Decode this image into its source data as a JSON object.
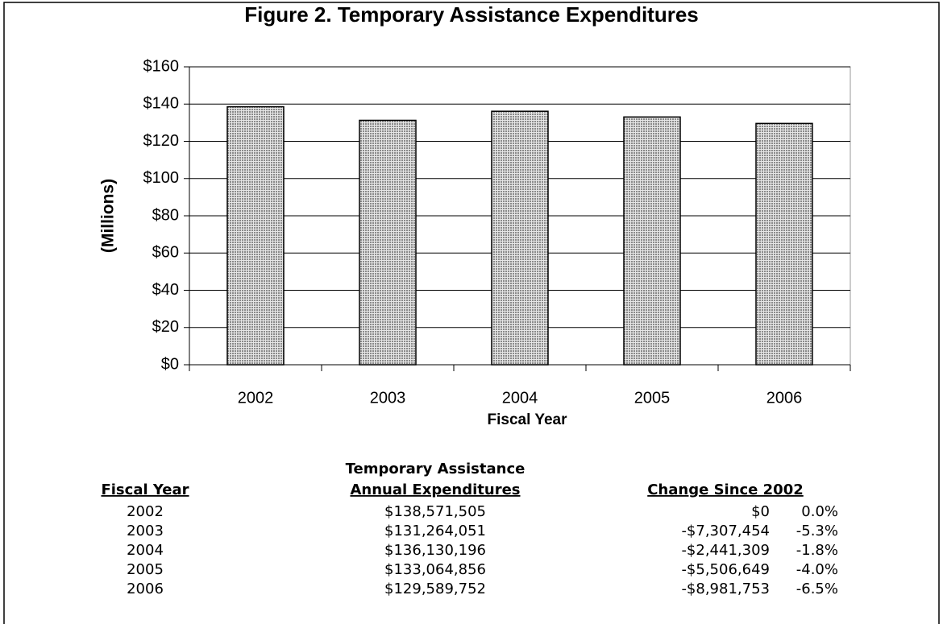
{
  "chart_data": {
    "type": "bar",
    "title": "Figure 2.  Temporary Assistance Expenditures",
    "ylabel": "(Millions)",
    "xlabel": "Fiscal Year",
    "categories": [
      "2002",
      "2003",
      "2004",
      "2005",
      "2006"
    ],
    "values": [
      138.571505,
      131.264051,
      136.130196,
      133.064856,
      129.589752
    ],
    "color": "#b0b0b0",
    "ylim": [
      0,
      160
    ],
    "yticks": [
      {
        "value": 0,
        "label": "$0"
      },
      {
        "value": 20,
        "label": "$20"
      },
      {
        "value": 40,
        "label": "$40"
      },
      {
        "value": 60,
        "label": "$60"
      },
      {
        "value": 80,
        "label": "$80"
      },
      {
        "value": 100,
        "label": "$100"
      },
      {
        "value": 120,
        "label": "$120"
      },
      {
        "value": 140,
        "label": "$140"
      },
      {
        "value": 160,
        "label": "$160"
      }
    ],
    "grid": true
  },
  "table": {
    "headers": [
      "Fiscal Year",
      "Temporary Assistance",
      "Annual Expenditures",
      "Change Since 2002"
    ],
    "rows": [
      [
        "2002",
        "$138,571,505",
        "$0",
        "0.0%"
      ],
      [
        "2003",
        "$131,264,051",
        "-$7,307,454",
        "-5.3%"
      ],
      [
        "2004",
        "$136,130,196",
        "-$2,441,309",
        "-1.8%"
      ],
      [
        "2005",
        "$133,064,856",
        "-$5,506,649",
        "-4.0%"
      ],
      [
        "2006",
        "$129,589,752",
        "-$8,981,753",
        "-6.5%"
      ]
    ]
  }
}
